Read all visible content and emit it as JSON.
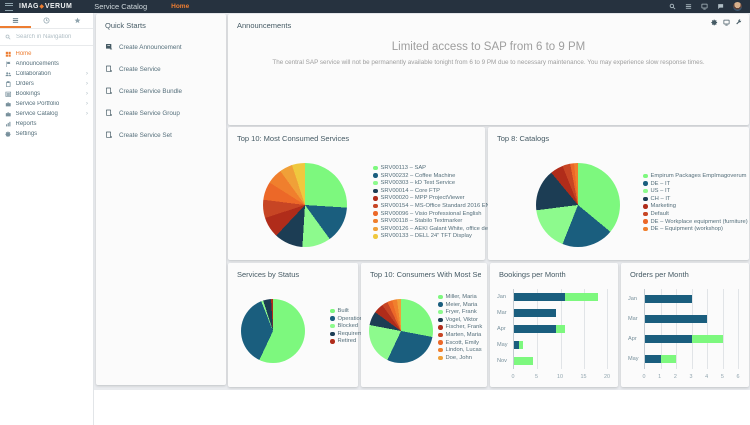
{
  "topbar": {
    "logo_left": "IMAG",
    "logo_right": "VERUM",
    "app_title": "Service Catalog",
    "nav_home": "Home",
    "right_icons": [
      "search",
      "menu",
      "monitor",
      "chat",
      "avatar"
    ]
  },
  "sidebar": {
    "tabs": [
      "menu",
      "history",
      "favorites"
    ],
    "search_placeholder": "Search in Navigation",
    "items": [
      {
        "label": "Home",
        "icon": "home",
        "active": true,
        "chevron": false
      },
      {
        "label": "Announcements",
        "icon": "flag",
        "active": false,
        "chevron": false
      },
      {
        "label": "Collaboration",
        "icon": "people",
        "active": false,
        "chevron": true
      },
      {
        "label": "Orders",
        "icon": "clipboard",
        "active": false,
        "chevron": true
      },
      {
        "label": "Bookings",
        "icon": "list",
        "active": false,
        "chevron": true
      },
      {
        "label": "Service Portfolio",
        "icon": "briefcase",
        "active": false,
        "chevron": true
      },
      {
        "label": "Service Catalog",
        "icon": "briefcase",
        "active": false,
        "chevron": true
      },
      {
        "label": "Reports",
        "icon": "reports",
        "active": false,
        "chevron": false
      },
      {
        "label": "Settings",
        "icon": "gear",
        "active": false,
        "chevron": false
      }
    ]
  },
  "quick_starts": {
    "title": "Quick Starts",
    "items": [
      {
        "label": "Create Announcement",
        "icon": "announce-filled"
      },
      {
        "label": "Create Service",
        "icon": "doc-plus"
      },
      {
        "label": "Create Service Bundle",
        "icon": "doc-plus"
      },
      {
        "label": "Create Service Group",
        "icon": "doc-plus"
      },
      {
        "label": "Create Service Set",
        "icon": "doc-plus"
      }
    ]
  },
  "announcements": {
    "title": "Announcements",
    "header_icons": [
      "gear",
      "monitor",
      "wrench"
    ],
    "heading": "Limited access to SAP from 6 to 9 PM",
    "body": "The central SAP service will not be permanently available tonight from 6 to 9 PM due to necessary maintenance. You may experience slow response times."
  },
  "palette": {
    "accent_orange": "#ED7D31",
    "topbar_bg": "#26323F",
    "teal": "#1A5E7E",
    "green": "#7DF87E",
    "main_bg": "#E9EBEE"
  },
  "chart_data": [
    {
      "type": "pie",
      "title": "Top 10: Most Consumed Services",
      "legend_position": "right",
      "labels": [
        "SRV00113 – SAP",
        "SRV00232 – Coffee Machine",
        "SRV00303 – kD Test Service",
        "SRV00014 – Core FTP",
        "SRV00020 – MPP ProjectViewer",
        "SRV00154 – MS-Office Standard 2016 EN",
        "SRV00096 – Visio Professional English",
        "SRV00118 – Stabilo Textmarker",
        "SRV00126 – AEKI Galant White, office desk",
        "SRV00133 – DELL 24\" TFT Display"
      ],
      "values": [
        26,
        14,
        11,
        11,
        8,
        7,
        7,
        6,
        5,
        5
      ],
      "colors": [
        "#7DF87E",
        "#1A5E7E",
        "#8DFA8D",
        "#1C3D54",
        "#B02C1A",
        "#C74524",
        "#EC6828",
        "#F07F2D",
        "#F0A038",
        "#EFC83E"
      ]
    },
    {
      "type": "pie",
      "title": "Top 8: Catalogs",
      "legend_position": "right",
      "labels": [
        "Empirum Packages EmpImagoverum",
        "DE – IT",
        "US – IT",
        "CH – IT",
        "Marketing",
        "Default",
        "DE – Workplace equipment (furniture)",
        "DE – Equipment (workshop)"
      ],
      "values": [
        36,
        20,
        17,
        16,
        5,
        3,
        1.5,
        1.5
      ],
      "colors": [
        "#7DF87E",
        "#1A5E7E",
        "#8DFA8D",
        "#1C3D54",
        "#B02C1A",
        "#C74524",
        "#EC6828",
        "#F07F2D"
      ]
    },
    {
      "type": "pie",
      "title": "Services by Status",
      "legend_position": "right",
      "labels": [
        "Built",
        "Operational",
        "Blocked",
        "Requirements",
        "Retired"
      ],
      "values": [
        57,
        37,
        1,
        4,
        1
      ],
      "colors": [
        "#7DF87E",
        "#1A5E7E",
        "#8DFA8D",
        "#1C3D54",
        "#B02C1A"
      ]
    },
    {
      "type": "pie",
      "title": "Top 10: Consumers With Most Servic...",
      "legend_position": "right",
      "labels": [
        "Miller, Maria",
        "Meier, Maria",
        "Fryer, Frank",
        "Vogel, Viktor",
        "Fischer, Frank",
        "Marten, Maria",
        "Escott, Emily",
        "Lindon, Lucas",
        "Doe, John"
      ],
      "values": [
        28,
        29,
        21,
        7,
        5,
        3,
        2.5,
        2.5,
        2
      ],
      "colors": [
        "#7DF87E",
        "#1A5E7E",
        "#8DFA8D",
        "#1C3D54",
        "#B02C1A",
        "#C74524",
        "#EC6828",
        "#F07F2D",
        "#F0A038"
      ]
    },
    {
      "type": "bar",
      "orientation": "horizontal",
      "title": "Bookings per Month",
      "categories": [
        "Jan",
        "Mar",
        "Apr",
        "May",
        "Nov"
      ],
      "series": [
        {
          "name": "teal",
          "color": "#1A5E7E",
          "values": [
            11,
            9,
            9,
            1,
            0
          ]
        },
        {
          "name": "green",
          "color": "#7DF87E",
          "values": [
            7,
            0,
            2,
            1,
            4
          ]
        }
      ],
      "xlim": [
        0,
        20
      ],
      "xticks": [
        0,
        5,
        10,
        15,
        20
      ],
      "grid": true
    },
    {
      "type": "bar",
      "orientation": "horizontal",
      "title": "Orders per Month",
      "categories": [
        "Jan",
        "Mar",
        "Apr",
        "May"
      ],
      "series": [
        {
          "name": "teal",
          "color": "#1A5E7E",
          "values": [
            3,
            4,
            3,
            1
          ]
        },
        {
          "name": "green",
          "color": "#7DF87E",
          "values": [
            0,
            0,
            2,
            1
          ]
        }
      ],
      "xlim": [
        0,
        6
      ],
      "xticks": [
        0,
        1,
        2,
        3,
        4,
        5,
        6
      ],
      "grid": true
    }
  ]
}
